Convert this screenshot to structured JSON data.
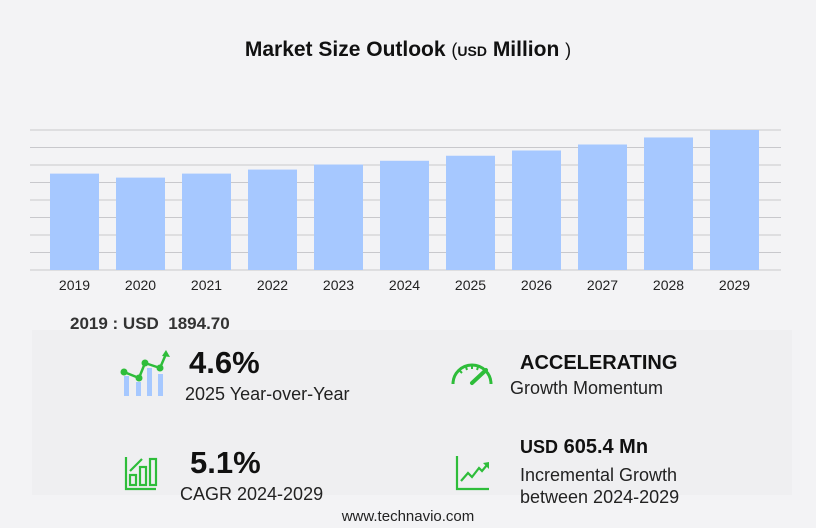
{
  "header": {
    "title": "Market Size Outlook",
    "unit_open": "(",
    "unit": "USD",
    "unit_label": "Million",
    "unit_close": ")"
  },
  "chart_data": {
    "type": "bar",
    "categories": [
      "2019",
      "2020",
      "2021",
      "2022",
      "2023",
      "2024",
      "2025",
      "2026",
      "2027",
      "2028",
      "2029"
    ],
    "values": [
      1894.7,
      1816,
      1895,
      1974,
      2073,
      2147,
      2246,
      2349,
      2467,
      2605,
      2752
    ],
    "title": "Market Size Outlook (USD Million)",
    "xlabel": "",
    "ylabel": "",
    "ylim": [
      0,
      2752
    ],
    "grid": true,
    "bar_color": "#a6c8ff",
    "grid_color": "#c8c8cc"
  },
  "start_value": "2019 : USD  1894.70",
  "stats": {
    "yoy": {
      "value": "4.6%",
      "label": "2025 Year-over-Year",
      "icon": "growth-chart-icon"
    },
    "momentum": {
      "value": "ACCELERATING",
      "label": "Growth Momentum",
      "icon": "speedometer-icon"
    },
    "cagr": {
      "value": "5.1%",
      "label": "CAGR 2024-2029",
      "icon": "bar-growth-icon"
    },
    "incremental": {
      "prefix": "USD",
      "value": "605.4 Mn",
      "label1": "Incremental Growth",
      "label2": "between 2024-2029",
      "icon": "trend-line-icon"
    }
  },
  "accent_color": "#2ebd3a",
  "footer": "www.technavio.com"
}
